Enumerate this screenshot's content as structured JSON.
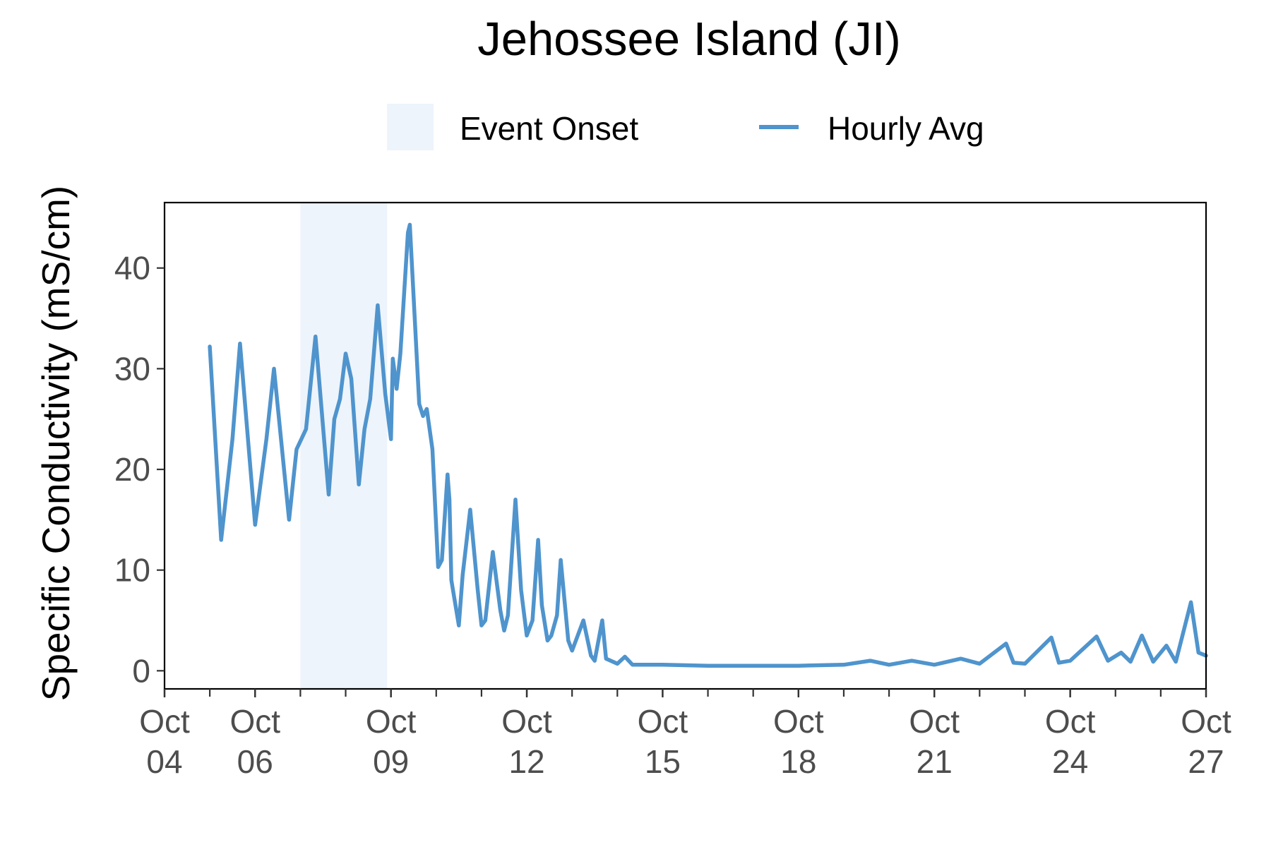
{
  "chart_data": {
    "type": "line",
    "title": "Jehossee Island (JI)",
    "ylabel": "Specific Conductivity (mS/cm)",
    "xlabel": "",
    "x_range": [
      "2023-10-04",
      "2023-10-27"
    ],
    "ylim": [
      -1.8,
      46.5
    ],
    "y_ticks": [
      0,
      10,
      20,
      30,
      40
    ],
    "y_tick_labels": [
      "0",
      "10",
      "20",
      "30",
      "40"
    ],
    "x_ticks": [
      "2023-10-04",
      "2023-10-06",
      "2023-10-09",
      "2023-10-12",
      "2023-10-15",
      "2023-10-18",
      "2023-10-21",
      "2023-10-24",
      "2023-10-27"
    ],
    "x_tick_labels": [
      [
        "Oct",
        "04"
      ],
      [
        "Oct",
        "06"
      ],
      [
        "Oct",
        "09"
      ],
      [
        "Oct",
        "12"
      ],
      [
        "Oct",
        "15"
      ],
      [
        "Oct",
        "18"
      ],
      [
        "Oct",
        "21"
      ],
      [
        "Oct",
        "24"
      ],
      [
        "Oct",
        "27"
      ]
    ],
    "grid": false,
    "legend_placement": "top",
    "legend": [
      {
        "label": "Event Onset",
        "kind": "rect",
        "color": "#edf4fb"
      },
      {
        "label": "Hourly Avg",
        "kind": "line",
        "color": "#4f94cd"
      }
    ],
    "event_onset": {
      "start": "2023-10-07 00:00",
      "end": "2023-10-08 22:00"
    },
    "series": [
      {
        "name": "Hourly Avg",
        "color": "#4f94cd",
        "points": [
          [
            "2023-10-05 00:00",
            32.2
          ],
          [
            "2023-10-05 06:00",
            13.0
          ],
          [
            "2023-10-05 12:00",
            23.0
          ],
          [
            "2023-10-05 16:00",
            32.5
          ],
          [
            "2023-10-06 00:00",
            14.5
          ],
          [
            "2023-10-06 06:00",
            23.0
          ],
          [
            "2023-10-06 10:00",
            30.0
          ],
          [
            "2023-10-06 18:00",
            15.0
          ],
          [
            "2023-10-06 22:00",
            22.0
          ],
          [
            "2023-10-07 03:00",
            24.0
          ],
          [
            "2023-10-07 08:00",
            33.2
          ],
          [
            "2023-10-07 15:00",
            17.5
          ],
          [
            "2023-10-07 18:00",
            25.0
          ],
          [
            "2023-10-07 21:00",
            27.0
          ],
          [
            "2023-10-08 00:00",
            31.5
          ],
          [
            "2023-10-08 03:00",
            29.0
          ],
          [
            "2023-10-08 07:00",
            18.5
          ],
          [
            "2023-10-08 10:00",
            24.0
          ],
          [
            "2023-10-08 13:00",
            27.0
          ],
          [
            "2023-10-08 17:00",
            36.3
          ],
          [
            "2023-10-08 21:00",
            27.5
          ],
          [
            "2023-10-09 00:00",
            23.0
          ],
          [
            "2023-10-09 01:00",
            31.0
          ],
          [
            "2023-10-09 03:00",
            28.0
          ],
          [
            "2023-10-09 05:00",
            31.5
          ],
          [
            "2023-10-09 09:00",
            43.5
          ],
          [
            "2023-10-09 10:00",
            44.3
          ],
          [
            "2023-10-09 15:00",
            26.5
          ],
          [
            "2023-10-09 17:00",
            25.3
          ],
          [
            "2023-10-09 19:00",
            26.0
          ],
          [
            "2023-10-09 22:00",
            22.0
          ],
          [
            "2023-10-10 01:00",
            10.3
          ],
          [
            "2023-10-10 03:00",
            11.0
          ],
          [
            "2023-10-10 06:00",
            19.5
          ],
          [
            "2023-10-10 07:00",
            17.0
          ],
          [
            "2023-10-10 08:00",
            9.0
          ],
          [
            "2023-10-10 12:00",
            4.5
          ],
          [
            "2023-10-10 14:00",
            9.5
          ],
          [
            "2023-10-10 18:00",
            16.0
          ],
          [
            "2023-10-10 22:00",
            8.0
          ],
          [
            "2023-10-11 00:00",
            4.5
          ],
          [
            "2023-10-11 02:00",
            5.0
          ],
          [
            "2023-10-11 06:00",
            11.8
          ],
          [
            "2023-10-11 10:00",
            6.0
          ],
          [
            "2023-10-11 12:00",
            4.0
          ],
          [
            "2023-10-11 14:00",
            5.5
          ],
          [
            "2023-10-11 18:00",
            17.0
          ],
          [
            "2023-10-11 21:00",
            8.0
          ],
          [
            "2023-10-12 00:00",
            3.5
          ],
          [
            "2023-10-12 03:00",
            5.0
          ],
          [
            "2023-10-12 06:00",
            13.0
          ],
          [
            "2023-10-12 08:00",
            6.5
          ],
          [
            "2023-10-12 11:00",
            3.0
          ],
          [
            "2023-10-12 13:00",
            3.5
          ],
          [
            "2023-10-12 16:00",
            5.5
          ],
          [
            "2023-10-12 18:00",
            11.0
          ],
          [
            "2023-10-12 22:00",
            3.0
          ],
          [
            "2023-10-13 00:00",
            2.0
          ],
          [
            "2023-10-13 06:00",
            5.0
          ],
          [
            "2023-10-13 10:00",
            1.5
          ],
          [
            "2023-10-13 12:00",
            1.0
          ],
          [
            "2023-10-13 16:00",
            5.0
          ],
          [
            "2023-10-13 18:00",
            1.2
          ],
          [
            "2023-10-14 00:00",
            0.7
          ],
          [
            "2023-10-14 04:00",
            1.4
          ],
          [
            "2023-10-14 08:00",
            0.6
          ],
          [
            "2023-10-15 00:00",
            0.6
          ],
          [
            "2023-10-16 00:00",
            0.5
          ],
          [
            "2023-10-17 00:00",
            0.5
          ],
          [
            "2023-10-18 00:00",
            0.5
          ],
          [
            "2023-10-19 00:00",
            0.6
          ],
          [
            "2023-10-19 14:00",
            1.0
          ],
          [
            "2023-10-20 00:00",
            0.6
          ],
          [
            "2023-10-20 12:00",
            1.0
          ],
          [
            "2023-10-21 00:00",
            0.6
          ],
          [
            "2023-10-21 14:00",
            1.2
          ],
          [
            "2023-10-22 00:00",
            0.7
          ],
          [
            "2023-10-22 14:00",
            2.7
          ],
          [
            "2023-10-22 18:00",
            0.8
          ],
          [
            "2023-10-23 00:00",
            0.7
          ],
          [
            "2023-10-23 14:00",
            3.3
          ],
          [
            "2023-10-23 18:00",
            0.8
          ],
          [
            "2023-10-24 00:00",
            1.0
          ],
          [
            "2023-10-24 14:00",
            3.4
          ],
          [
            "2023-10-24 20:00",
            1.0
          ],
          [
            "2023-10-25 03:00",
            1.8
          ],
          [
            "2023-10-25 08:00",
            0.9
          ],
          [
            "2023-10-25 14:00",
            3.5
          ],
          [
            "2023-10-25 20:00",
            0.9
          ],
          [
            "2023-10-26 03:00",
            2.5
          ],
          [
            "2023-10-26 08:00",
            0.9
          ],
          [
            "2023-10-26 16:00",
            6.8
          ],
          [
            "2023-10-26 20:00",
            1.8
          ],
          [
            "2023-10-27 00:00",
            1.5
          ]
        ]
      }
    ]
  }
}
